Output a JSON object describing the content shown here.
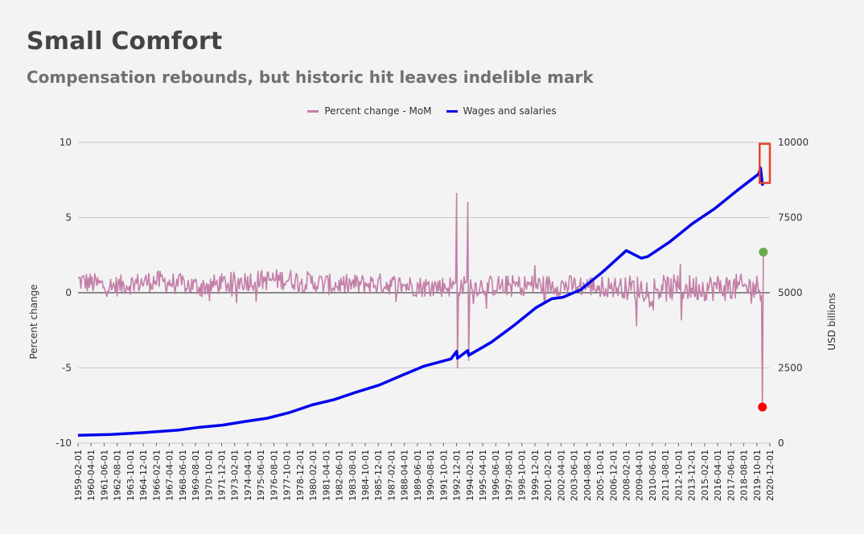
{
  "header": {
    "title": "Small Comfort",
    "subtitle": "Compensation rebounds, but historic hit leaves indelible mark"
  },
  "colors": {
    "background": "#f3f3f3",
    "mom_series": "#c37fa8",
    "wages_series": "#0000ee",
    "highlight_box": "#e8422a",
    "high_point": "#6aa84f",
    "low_point": "#ff0000"
  },
  "chart_data": {
    "type": "line",
    "title": "Small Comfort",
    "subtitle": "Compensation rebounds, but historic hit leaves indelible mark",
    "legend_position": "top-center",
    "grid": true,
    "x_axis": {
      "type": "date",
      "start": "1959-02-01",
      "end": "2020-12-01",
      "tick_labels": [
        "1959-02-01",
        "1960-04-01",
        "1961-06-01",
        "1962-08-01",
        "1963-10-01",
        "1964-12-01",
        "1966-02-01",
        "1967-04-01",
        "1968-06-01",
        "1969-08-01",
        "1970-10-01",
        "1971-12-01",
        "1973-02-01",
        "1974-04-01",
        "1975-06-01",
        "1976-08-01",
        "1977-10-01",
        "1978-12-01",
        "1980-02-01",
        "1981-04-01",
        "1982-06-01",
        "1983-08-01",
        "1984-10-01",
        "1985-12-01",
        "1987-02-01",
        "1988-04-01",
        "1989-06-01",
        "1990-08-01",
        "1991-10-01",
        "1992-12-01",
        "1994-02-01",
        "1995-04-01",
        "1996-06-01",
        "1997-08-01",
        "1998-10-01",
        "1999-12-01",
        "2001-02-01",
        "2002-04-01",
        "2003-06-01",
        "2004-08-01",
        "2005-10-01",
        "2006-12-01",
        "2008-02-01",
        "2009-04-01",
        "2010-06-01",
        "2011-08-01",
        "2012-10-01",
        "2013-12-01",
        "2015-02-01",
        "2016-04-01",
        "2017-06-01",
        "2018-08-01",
        "2019-10-01",
        "2020-12-01"
      ]
    },
    "y_left": {
      "label": "Percent change",
      "range": [
        -10,
        10
      ],
      "ticks": [
        -10,
        -5,
        0,
        5,
        10
      ],
      "tick_labels": [
        "-10",
        "-5",
        "0",
        "5",
        "10"
      ]
    },
    "y_right": {
      "label": "USD billions",
      "range": [
        0,
        10000
      ],
      "ticks": [
        0,
        2500,
        5000,
        7500,
        10000
      ],
      "tick_labels": [
        "0",
        "2500",
        "5000",
        "7500",
        "10000"
      ]
    },
    "series": [
      {
        "name": "Percent change - MoM",
        "axis": "left",
        "color": "#c37fa8",
        "baseline_points": [
          [
            "1959-02-01",
            0.8
          ],
          [
            "1962-01-01",
            0.4
          ],
          [
            "1966-01-01",
            0.8
          ],
          [
            "1970-01-01",
            0.4
          ],
          [
            "1974-01-01",
            0.8
          ],
          [
            "1978-01-01",
            0.9
          ],
          [
            "1982-01-01",
            0.5
          ],
          [
            "1986-01-01",
            0.6
          ],
          [
            "1990-01-01",
            0.4
          ],
          [
            "1995-01-01",
            0.45
          ],
          [
            "2000-01-01",
            0.5
          ],
          [
            "2005-01-01",
            0.45
          ],
          [
            "2010-01-01",
            0.25
          ],
          [
            "2015-01-01",
            0.35
          ],
          [
            "2019-12-01",
            0.35
          ]
        ],
        "spikes": [
          [
            "1992-12-01",
            6.6
          ],
          [
            "1993-01-01",
            -5.0
          ],
          [
            "1993-12-01",
            6.0
          ],
          [
            "1994-01-01",
            -4.5
          ],
          [
            "1999-12-01",
            1.8
          ],
          [
            "2009-01-01",
            -2.2
          ],
          [
            "2012-12-01",
            1.9
          ],
          [
            "2013-01-01",
            -1.8
          ],
          [
            "2020-03-01",
            -0.2
          ],
          [
            "2020-04-01",
            -7.6
          ],
          [
            "2020-05-01",
            2.7
          ]
        ]
      },
      {
        "name": "Wages and salaries",
        "axis": "right",
        "color": "#0000ee",
        "points": [
          [
            "1959-02-01",
            260
          ],
          [
            "1962-01-01",
            290
          ],
          [
            "1965-01-01",
            350
          ],
          [
            "1968-01-01",
            430
          ],
          [
            "1970-01-01",
            530
          ],
          [
            "1972-01-01",
            600
          ],
          [
            "1974-01-01",
            720
          ],
          [
            "1976-01-01",
            830
          ],
          [
            "1978-01-01",
            1020
          ],
          [
            "1980-01-01",
            1270
          ],
          [
            "1982-01-01",
            1450
          ],
          [
            "1984-01-01",
            1700
          ],
          [
            "1986-01-01",
            1930
          ],
          [
            "1988-01-01",
            2250
          ],
          [
            "1990-01-01",
            2560
          ],
          [
            "1992-06-01",
            2800
          ],
          [
            "1992-12-01",
            3050
          ],
          [
            "1993-01-01",
            2820
          ],
          [
            "1993-12-01",
            3080
          ],
          [
            "1994-01-01",
            2920
          ],
          [
            "1996-01-01",
            3350
          ],
          [
            "1998-01-01",
            3900
          ],
          [
            "2000-01-01",
            4500
          ],
          [
            "2001-06-01",
            4800
          ],
          [
            "2002-06-01",
            4850
          ],
          [
            "2004-01-01",
            5100
          ],
          [
            "2006-01-01",
            5700
          ],
          [
            "2008-02-01",
            6400
          ],
          [
            "2009-06-01",
            6150
          ],
          [
            "2010-01-01",
            6200
          ],
          [
            "2012-01-01",
            6700
          ],
          [
            "2014-01-01",
            7300
          ],
          [
            "2016-01-01",
            7800
          ],
          [
            "2018-01-01",
            8400
          ],
          [
            "2019-12-01",
            8950
          ],
          [
            "2020-02-01",
            9150
          ],
          [
            "2020-04-01",
            8600
          ],
          [
            "2020-05-01",
            8650
          ]
        ]
      }
    ],
    "annotations": [
      {
        "type": "box",
        "from": "2020-01-01",
        "to": "2020-12-01",
        "y_range": [
          8650,
          9950
        ],
        "axis": "right",
        "color": "#e8422a"
      },
      {
        "type": "point",
        "date": "2020-05-01",
        "value": 2.7,
        "axis": "left",
        "color": "#6aa84f"
      },
      {
        "type": "point",
        "date": "2020-04-01",
        "value": -7.6,
        "axis": "left",
        "color": "#ff0000"
      }
    ]
  }
}
